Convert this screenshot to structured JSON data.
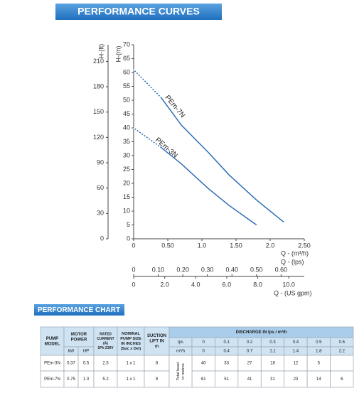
{
  "header": {
    "title": "PERFORMANCE CURVES"
  },
  "chart_data": {
    "type": "line",
    "xlabel": "Q - (m³/h)",
    "ylabel": "H-(m)",
    "x": [
      0,
      0.4,
      0.7,
      1.1,
      1.4,
      1.8,
      2.2
    ],
    "series": [
      {
        "name": "PEm-7N",
        "color": "#2e6db4",
        "values": [
          61,
          51,
          41,
          31,
          23,
          14,
          6
        ]
      },
      {
        "name": "PEm-3N",
        "color": "#2e6db4",
        "values": [
          40,
          33,
          27,
          18,
          12,
          5,
          null
        ]
      }
    ],
    "xlim": [
      0,
      2.5
    ],
    "xticks": [
      0,
      {
        "value": 0.5,
        "label": "0.50"
      },
      {
        "value": 1,
        "label": "1.0"
      },
      {
        "value": 1.5,
        "label": "1.50"
      },
      {
        "value": 2,
        "label": "2.0"
      },
      {
        "value": 2.5,
        "label": "2.50"
      }
    ],
    "ylim": [
      0,
      70
    ],
    "yticks": [
      0,
      5,
      10,
      15,
      20,
      25,
      30,
      35,
      40,
      45,
      50,
      55,
      60,
      65,
      70
    ],
    "y2label": "H-(ft)",
    "y2lim": [
      0,
      229.7
    ],
    "y2ticks": [
      0,
      30,
      60,
      90,
      120,
      150,
      180,
      210
    ],
    "x2label": "Q - (lps)",
    "x2lim": [
      0,
      0.6944
    ],
    "x2ticks": [
      0,
      {
        "value": 0.1,
        "label": "0.10"
      },
      {
        "value": 0.2,
        "label": "0.20"
      },
      {
        "value": 0.3,
        "label": "0.30"
      },
      {
        "value": 0.4,
        "label": "0.40"
      },
      {
        "value": 0.5,
        "label": "0.50"
      },
      {
        "value": 0.6,
        "label": "0.60"
      }
    ],
    "x3label": "Q - (US gpm)",
    "x3lim": [
      0,
      11.0
    ],
    "x3ticks": [
      0,
      {
        "value": 2,
        "label": "2.0"
      },
      {
        "value": 4,
        "label": "4.0"
      },
      {
        "value": 6,
        "label": "6.0"
      },
      {
        "value": 8,
        "label": "8.0"
      },
      {
        "value": 10,
        "label": "10.0"
      }
    ],
    "grid": false
  },
  "table": {
    "title": "PERFORMANCE CHART",
    "model_header": [
      "PUMP",
      "MODEL"
    ],
    "power_header": [
      "MOTOR",
      "POWER"
    ],
    "power_units": [
      "kW",
      "HP"
    ],
    "current_header": [
      "RATED",
      "CURRENT",
      "(A)",
      "1Ph 230V"
    ],
    "size_header": [
      "NOMINAL",
      "PUMP SIZE",
      "IN INCHES",
      "(Suc x Del)"
    ],
    "lift_header": [
      "SUCTION",
      "LIFT IN",
      "m"
    ],
    "discharge_header": "DISCHARGE IN lps / m³/h",
    "lps_label": "lps",
    "lps": [
      "0",
      "0.1",
      "0.2",
      "0.3",
      "0.4",
      "0.5",
      "0.6"
    ],
    "m3h_label": "m³/h",
    "m3h": [
      "0",
      "0.4",
      "0.7",
      "1.1",
      "1.4",
      "1.8",
      "2.2"
    ],
    "head_label": [
      "Total head",
      "in metres"
    ],
    "rows": [
      {
        "model": "PEm-3N",
        "kw": "0.37",
        "hp": "0.5",
        "current": "2.5",
        "size": "1 x 1",
        "lift": "8",
        "head": [
          "40",
          "33",
          "27",
          "18",
          "12",
          "5"
        ]
      },
      {
        "model": "PEm-7N",
        "kw": "0.75",
        "hp": "1.0",
        "current": "5.2",
        "size": "1 x 1",
        "lift": "8",
        "head": [
          "61",
          "51",
          "41",
          "31",
          "23",
          "14",
          "6"
        ]
      }
    ]
  }
}
